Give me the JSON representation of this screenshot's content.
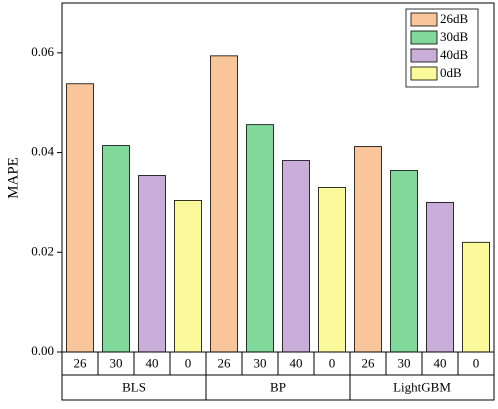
{
  "chart_data": {
    "type": "bar",
    "ylabel": "MAPE",
    "categories": [
      "BLS",
      "BP",
      "LightGBM"
    ],
    "subcategories": [
      "26",
      "30",
      "40",
      "0"
    ],
    "series": [
      {
        "name": "26dB",
        "color": "#f9c59b",
        "values": [
          0.0538,
          0.0594,
          0.0412
        ]
      },
      {
        "name": "30dB",
        "color": "#80d99b",
        "values": [
          0.0414,
          0.0456,
          0.0364
        ]
      },
      {
        "name": "40dB",
        "color": "#c9aed9",
        "values": [
          0.0354,
          0.0384,
          0.03
        ]
      },
      {
        "name": "0dB",
        "color": "#fafa9b",
        "values": [
          0.0304,
          0.033,
          0.022
        ]
      }
    ],
    "ylim": [
      0,
      0.07
    ],
    "yticks": [
      {
        "value": 0,
        "label": "0.00"
      },
      0.02,
      0.04,
      0.06
    ],
    "legend": "upper right"
  }
}
